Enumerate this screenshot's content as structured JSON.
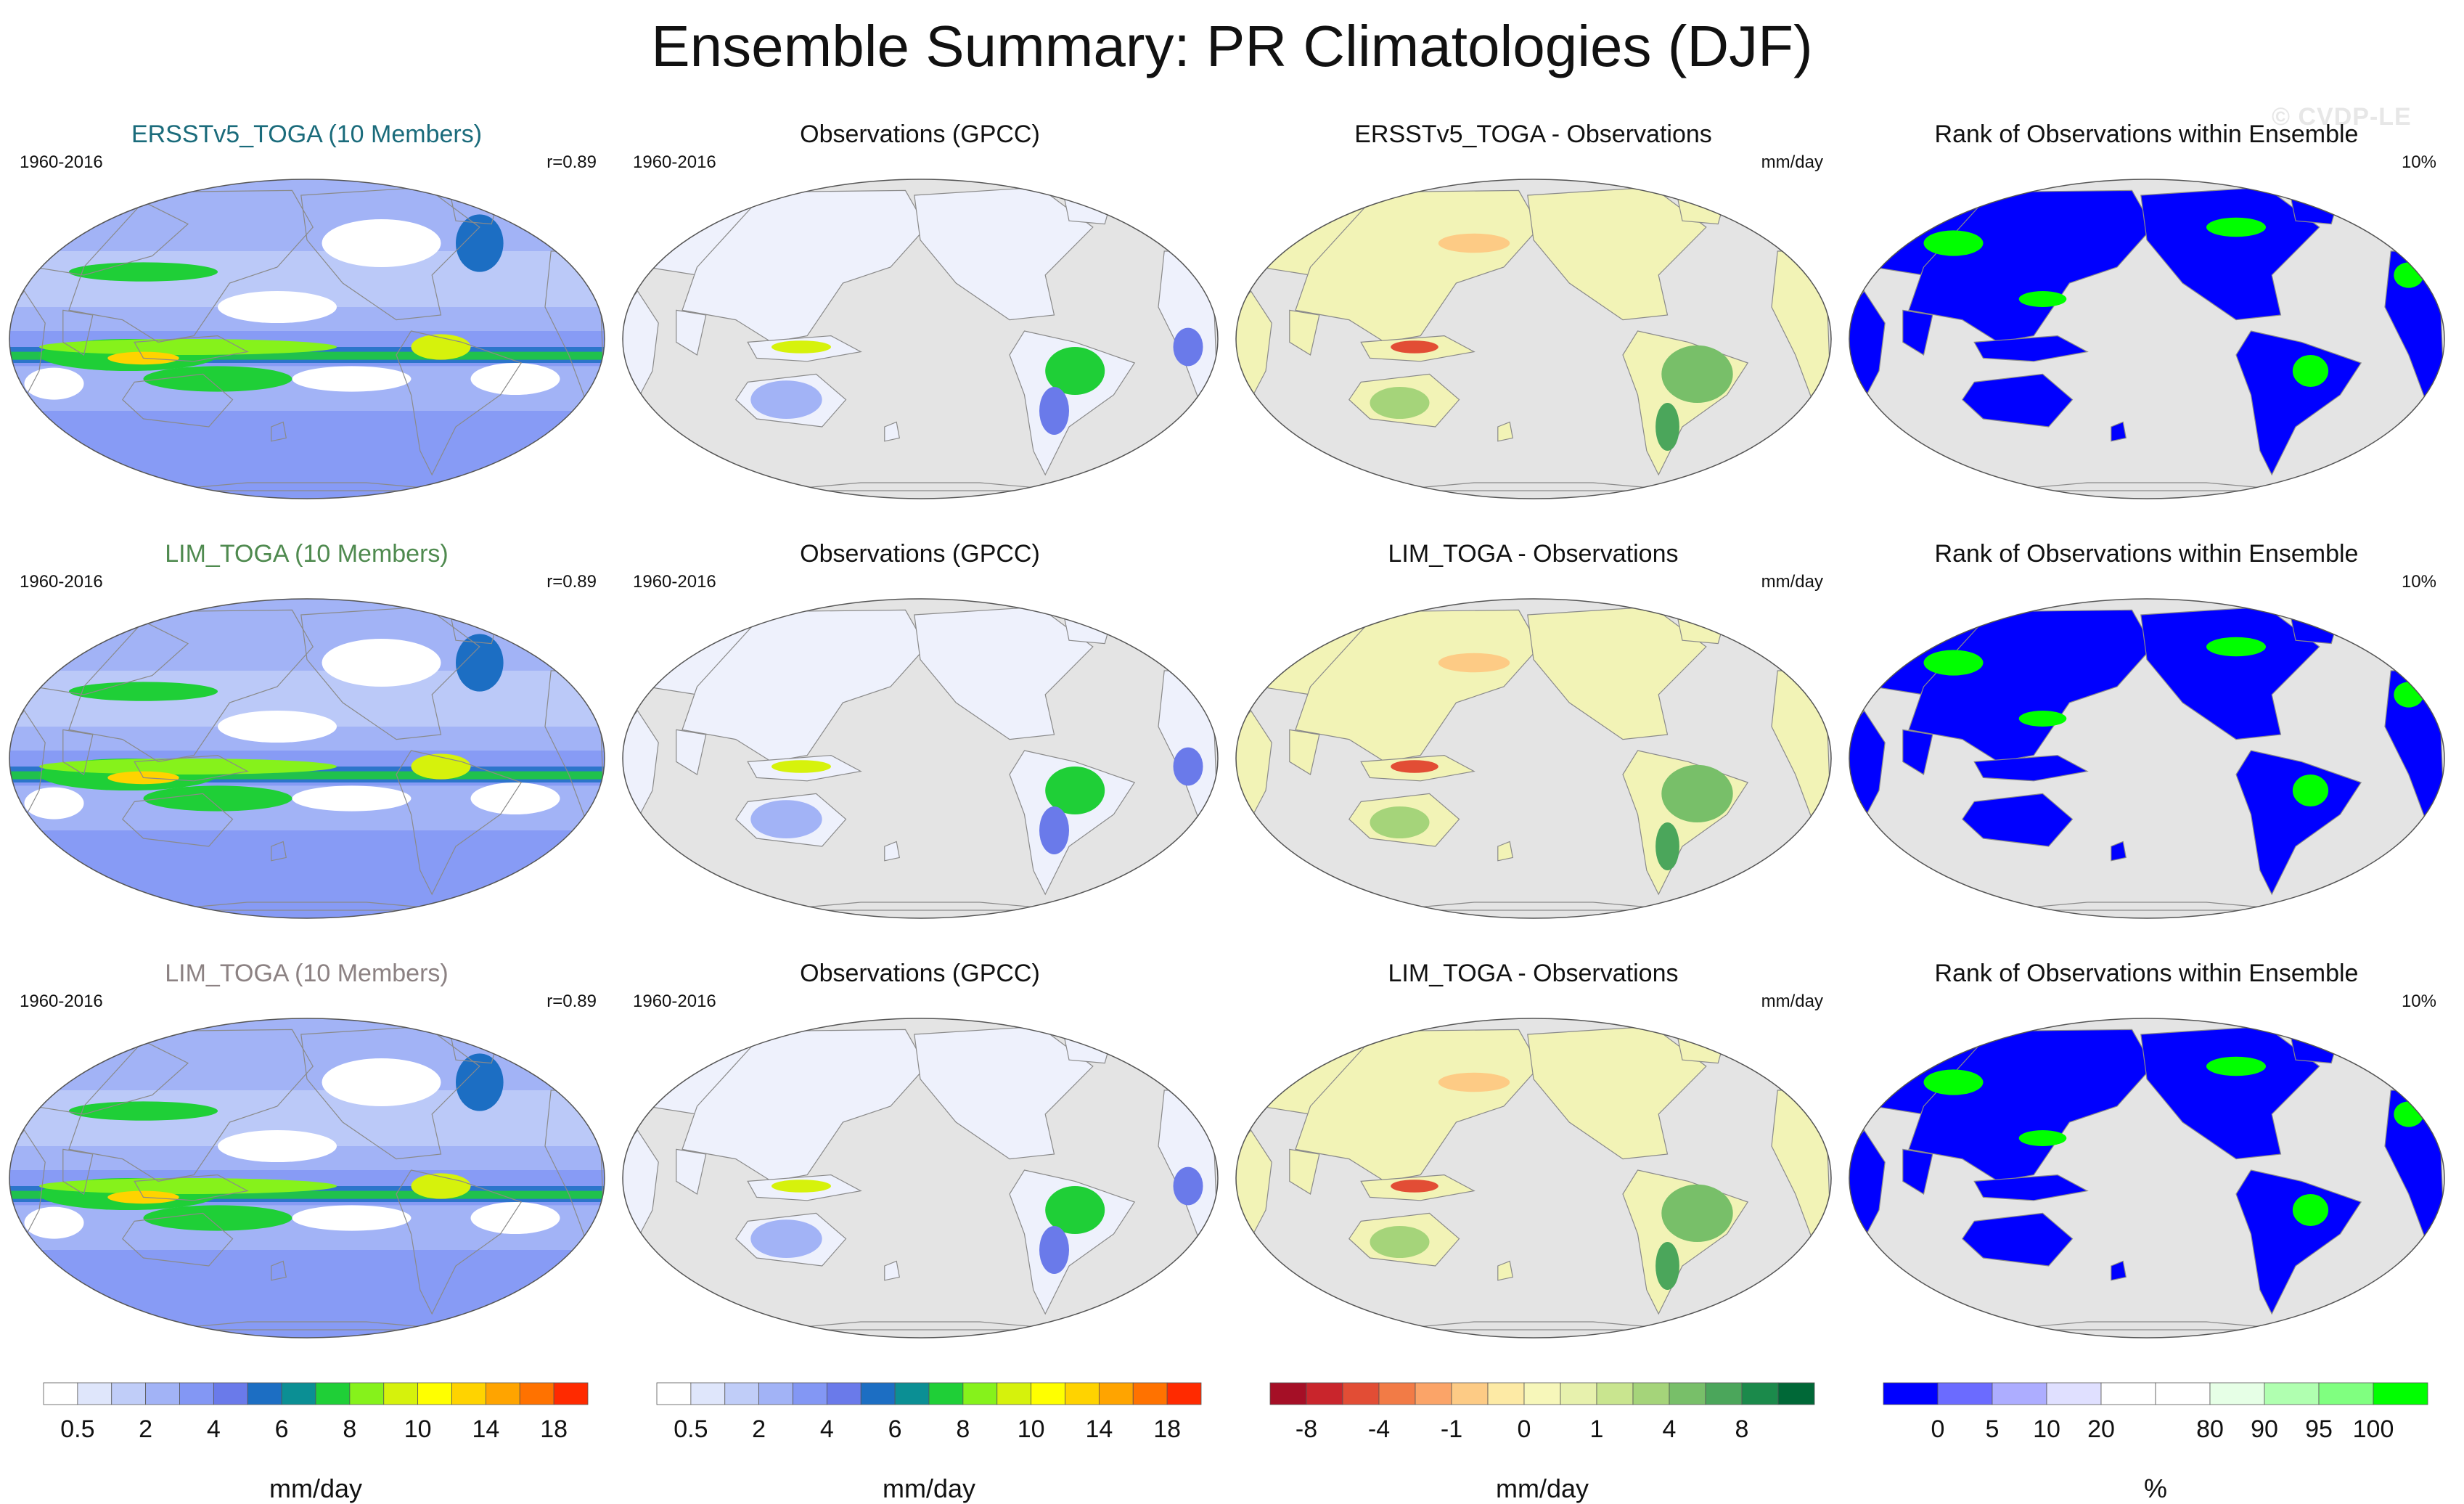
{
  "title": "Ensemble Summary: PR Climatologies (DJF)",
  "watermark": "© CVDP-LE",
  "colors": {
    "ocean_gray": "#e4e4e4",
    "land_fill": "#ffffff",
    "coast": "#8a8a8a",
    "rank_blue": "#0000ff",
    "rank_green": "#00ff00"
  },
  "chart_data": [
    {
      "type": "heatmap",
      "title": "ERSSTv5_TOGA (10 Members)",
      "title_color": "#1a6b7b",
      "period": "1960-2016",
      "corner": "r=0.89",
      "kind": "model",
      "colorbar": 0,
      "units": "mm/day",
      "region": "global"
    },
    {
      "type": "heatmap",
      "title": "Observations (GPCC)",
      "title_color": "#111111",
      "period": "1960-2016",
      "corner": "",
      "kind": "obs",
      "colorbar": 1,
      "units": "mm/day",
      "region": "land"
    },
    {
      "type": "heatmap",
      "title": "ERSSTv5_TOGA - Observations",
      "title_color": "#111111",
      "period": "",
      "corner": "mm/day",
      "kind": "diff",
      "colorbar": 2,
      "units": "mm/day",
      "region": "land"
    },
    {
      "type": "heatmap",
      "title": "Rank of Observations within Ensemble",
      "title_color": "#111111",
      "period": "",
      "corner": "10%",
      "kind": "rank",
      "colorbar": 3,
      "units": "%",
      "region": "land"
    },
    {
      "type": "heatmap",
      "title": "LIM_TOGA (10 Members)",
      "title_color": "#4f8a4f",
      "period": "1960-2016",
      "corner": "r=0.89",
      "kind": "model",
      "colorbar": 0,
      "units": "mm/day",
      "region": "global"
    },
    {
      "type": "heatmap",
      "title": "Observations (GPCC)",
      "title_color": "#111111",
      "period": "1960-2016",
      "corner": "",
      "kind": "obs",
      "colorbar": 1,
      "units": "mm/day",
      "region": "land"
    },
    {
      "type": "heatmap",
      "title": "LIM_TOGA - Observations",
      "title_color": "#111111",
      "period": "",
      "corner": "mm/day",
      "kind": "diff",
      "colorbar": 2,
      "units": "mm/day",
      "region": "land"
    },
    {
      "type": "heatmap",
      "title": "Rank of Observations within Ensemble",
      "title_color": "#111111",
      "period": "",
      "corner": "10%",
      "kind": "rank",
      "colorbar": 3,
      "units": "%",
      "region": "land"
    },
    {
      "type": "heatmap",
      "title": "LIM_TOGA (10 Members)",
      "title_color": "#8c8283",
      "period": "1960-2016",
      "corner": "r=0.89",
      "kind": "model",
      "colorbar": 0,
      "units": "mm/day",
      "region": "global"
    },
    {
      "type": "heatmap",
      "title": "Observations (GPCC)",
      "title_color": "#111111",
      "period": "1960-2016",
      "corner": "",
      "kind": "obs",
      "colorbar": 1,
      "units": "mm/day",
      "region": "land"
    },
    {
      "type": "heatmap",
      "title": "LIM_TOGA - Observations",
      "title_color": "#111111",
      "period": "",
      "corner": "mm/day",
      "kind": "diff",
      "colorbar": 2,
      "units": "mm/day",
      "region": "land"
    },
    {
      "type": "heatmap",
      "title": "Rank of Observations within Ensemble",
      "title_color": "#111111",
      "period": "",
      "corner": "10%",
      "kind": "rank",
      "colorbar": 3,
      "units": "%",
      "region": "land"
    }
  ],
  "colorbars": [
    {
      "units": "mm/day",
      "boxes": [
        "#ffffff",
        "#dfe6fb",
        "#c0cdf8",
        "#a2b3f6",
        "#8397f4",
        "#6a7aea",
        "#1c6ec3",
        "#0b8f94",
        "#1fcf37",
        "#86f21b",
        "#d6f20c",
        "#ffff00",
        "#ffd300",
        "#ffa400",
        "#ff7200",
        "#ff2a00"
      ],
      "labels": [
        "0.5",
        "2",
        "4",
        "6",
        "8",
        "10",
        "14",
        "18"
      ],
      "label_boundaries": [
        1,
        3,
        5,
        7,
        9,
        11,
        13,
        15
      ]
    },
    {
      "units": "mm/day",
      "boxes": [
        "#ffffff",
        "#dfe6fb",
        "#c0cdf8",
        "#a2b3f6",
        "#8397f4",
        "#6a7aea",
        "#1c6ec3",
        "#0b8f94",
        "#1fcf37",
        "#86f21b",
        "#d6f20c",
        "#ffff00",
        "#ffd300",
        "#ffa400",
        "#ff7200",
        "#ff2a00"
      ],
      "labels": [
        "0.5",
        "2",
        "4",
        "6",
        "8",
        "10",
        "14",
        "18"
      ],
      "label_boundaries": [
        1,
        3,
        5,
        7,
        9,
        11,
        13,
        15
      ]
    },
    {
      "units": "mm/day",
      "boxes": [
        "#a50f26",
        "#c9252c",
        "#e24d35",
        "#f27b46",
        "#fba468",
        "#fdcb85",
        "#fdeaa5",
        "#f7f7ba",
        "#e7f1ad",
        "#c9e58f",
        "#a5d47a",
        "#78bf69",
        "#4ba65b",
        "#1b8a4b",
        "#006837"
      ],
      "labels": [
        "-8",
        "-4",
        "-1",
        "0",
        "1",
        "4",
        "8"
      ],
      "label_boundaries": [
        1,
        3,
        5,
        7,
        9,
        11,
        13
      ]
    },
    {
      "units": "%",
      "boxes": [
        "#0000ff",
        "#6b6bff",
        "#adadff",
        "#e0e0ff",
        "#ffffff",
        "#ffffff",
        "#e6ffe6",
        "#b0ffb0",
        "#80ff80",
        "#00ff00"
      ],
      "labels": [
        "0",
        "5",
        "10",
        "20",
        "80",
        "90",
        "95",
        "100"
      ],
      "label_boundaries": [
        1,
        2,
        3,
        4,
        6,
        7,
        8,
        9
      ]
    }
  ]
}
